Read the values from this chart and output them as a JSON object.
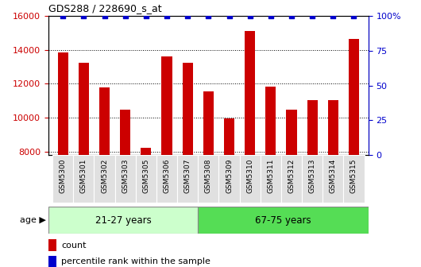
{
  "title": "GDS288 / 228690_s_at",
  "categories": [
    "GSM5300",
    "GSM5301",
    "GSM5302",
    "GSM5303",
    "GSM5305",
    "GSM5306",
    "GSM5307",
    "GSM5308",
    "GSM5309",
    "GSM5310",
    "GSM5311",
    "GSM5312",
    "GSM5313",
    "GSM5314",
    "GSM5315"
  ],
  "counts": [
    13850,
    13250,
    11800,
    10450,
    8200,
    13600,
    13250,
    11550,
    9950,
    15100,
    11850,
    10450,
    11050,
    11050,
    14650
  ],
  "percentiles": [
    100,
    100,
    100,
    100,
    100,
    100,
    100,
    100,
    100,
    100,
    100,
    100,
    100,
    100,
    100
  ],
  "ylim_left": [
    7800,
    16000
  ],
  "ylim_right": [
    0,
    100
  ],
  "yticks_left": [
    8000,
    10000,
    12000,
    14000,
    16000
  ],
  "yticks_right": [
    0,
    25,
    50,
    75,
    100
  ],
  "ytick_labels_right": [
    "0",
    "25",
    "50",
    "75",
    "100%"
  ],
  "bar_color": "#cc0000",
  "percentile_color": "#0000cc",
  "bar_width": 0.5,
  "group1_label": "21-27 years",
  "group2_label": "67-75 years",
  "group1_count": 7,
  "group2_count": 8,
  "group1_color": "#ccffcc",
  "group2_color": "#55dd55",
  "age_label": "age",
  "legend_count_label": "count",
  "legend_percentile_label": "percentile rank within the sample",
  "bar_color_hex": "#cc0000",
  "percentile_color_hex": "#0000cc",
  "tick_color_left": "#cc0000",
  "tick_color_right": "#0000cc",
  "xtick_bg": "#dddddd"
}
